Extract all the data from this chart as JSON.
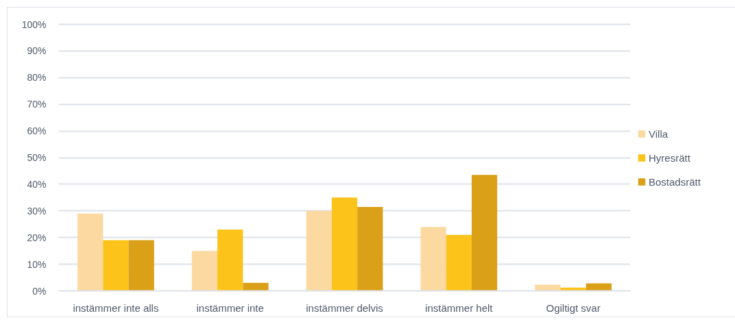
{
  "chart_data": {
    "type": "bar",
    "categories": [
      "instämmer inte alls",
      "instämmer inte",
      "instämmer delvis",
      "instämmer helt",
      "Ogiltigt svar"
    ],
    "series": [
      {
        "name": "Villa",
        "color": "#fcd9a0",
        "values": [
          29,
          15,
          30,
          24,
          2.3
        ]
      },
      {
        "name": "Hyresrätt",
        "color": "#fcc31a",
        "values": [
          19,
          23,
          35,
          21,
          1.2
        ]
      },
      {
        "name": "Bostadsrätt",
        "color": "#d9a018",
        "values": [
          19,
          3,
          31.5,
          43.5,
          2.8
        ]
      }
    ],
    "ylim": [
      0,
      100
    ],
    "yticks": [
      {
        "value": 0,
        "label": "0%"
      },
      {
        "value": 10,
        "label": "10%"
      },
      {
        "value": 20,
        "label": "20%"
      },
      {
        "value": 30,
        "label": "30%"
      },
      {
        "value": 40,
        "label": "40%"
      },
      {
        "value": 50,
        "label": "50%"
      },
      {
        "value": 60,
        "label": "60%"
      },
      {
        "value": 70,
        "label": "70%"
      },
      {
        "value": 80,
        "label": "80%"
      },
      {
        "value": 90,
        "label": "90%"
      },
      {
        "value": 100,
        "label": "100%"
      }
    ],
    "grid": "y",
    "legend": "right"
  }
}
